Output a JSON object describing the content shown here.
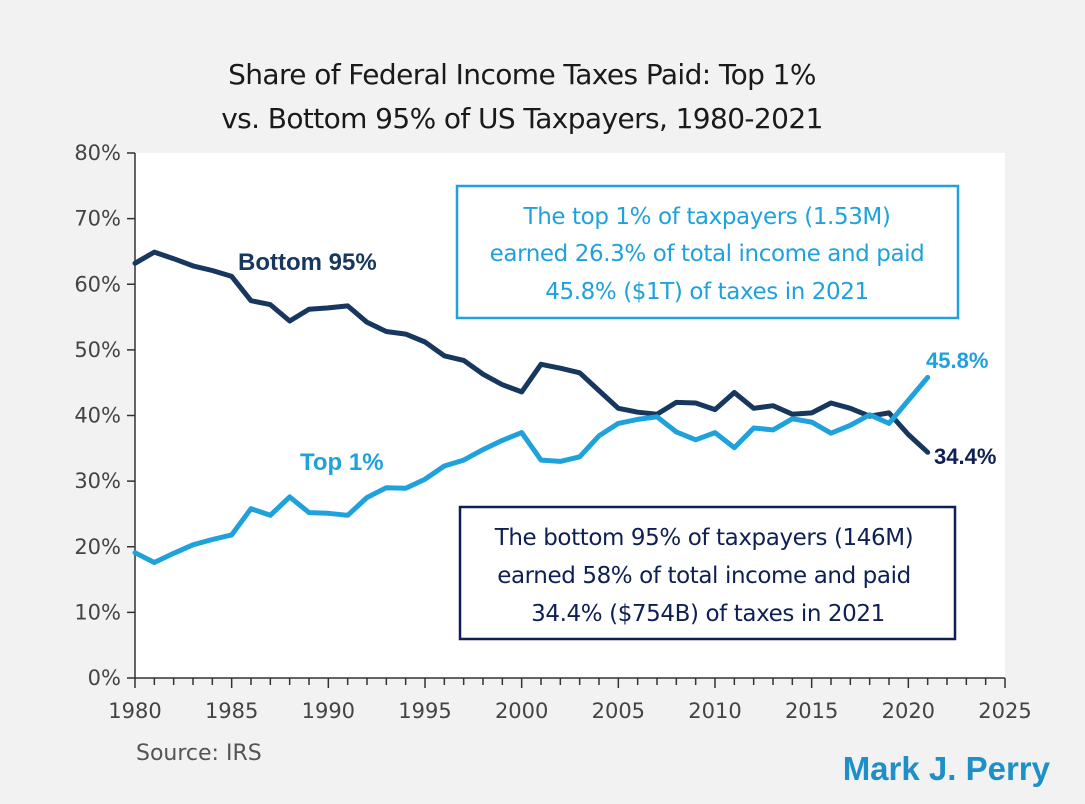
{
  "chart_data": {
    "type": "line",
    "title_lines": [
      "Share of Federal Income Taxes Paid: Top 1%",
      "vs. Bottom 95% of US Taxpayers, 1980-2021"
    ],
    "xlim": [
      1980,
      2025
    ],
    "ylim": [
      0,
      80
    ],
    "x_ticks": [
      "1980",
      "1985",
      "1990",
      "1995",
      "2000",
      "2005",
      "2010",
      "2015",
      "2020",
      "2025"
    ],
    "y_ticks": [
      "0%",
      "10%",
      "20%",
      "30%",
      "40%",
      "50%",
      "60%",
      "70%",
      "80%"
    ],
    "x": [
      1980,
      1981,
      1982,
      1983,
      1984,
      1985,
      1986,
      1987,
      1988,
      1989,
      1990,
      1991,
      1992,
      1993,
      1994,
      1995,
      1996,
      1997,
      1998,
      1999,
      2000,
      2001,
      2002,
      2003,
      2004,
      2005,
      2006,
      2007,
      2008,
      2009,
      2010,
      2011,
      2012,
      2013,
      2014,
      2015,
      2016,
      2017,
      2018,
      2019,
      2020,
      2021
    ],
    "series": [
      {
        "name": "Bottom 95%",
        "color": "#17375e",
        "values": [
          63.2,
          64.9,
          63.9,
          62.8,
          62.1,
          61.2,
          57.5,
          56.9,
          54.4,
          56.2,
          56.4,
          56.7,
          54.2,
          52.8,
          52.4,
          51.2,
          49.1,
          48.4,
          46.3,
          44.7,
          43.6,
          47.8,
          47.2,
          46.5,
          43.8,
          41.1,
          40.5,
          40.2,
          42.0,
          41.9,
          40.9,
          43.5,
          41.1,
          41.5,
          40.2,
          40.4,
          41.9,
          41.1,
          39.9,
          40.4,
          37.1,
          34.4
        ]
      },
      {
        "name": "Top 1%",
        "color": "#1fa2dc",
        "values": [
          19.1,
          17.6,
          19.0,
          20.3,
          21.1,
          21.8,
          25.8,
          24.8,
          27.6,
          25.2,
          25.1,
          24.8,
          27.5,
          29.0,
          28.9,
          30.3,
          32.3,
          33.2,
          34.8,
          36.2,
          37.4,
          33.2,
          33.0,
          33.7,
          36.9,
          38.8,
          39.4,
          39.8,
          37.5,
          36.3,
          37.4,
          35.1,
          38.1,
          37.8,
          39.5,
          39.0,
          37.3,
          38.5,
          40.1,
          38.8,
          42.3,
          45.8
        ]
      }
    ],
    "series_labels": {
      "bottom": "Bottom 95%",
      "top": "Top 1%"
    },
    "end_labels": {
      "top": "45.8%",
      "bottom": "34.4%"
    },
    "annotations": {
      "top_box": {
        "lines": [
          "The top 1% of taxpayers (1.53M)",
          "earned 26.3% of total income and paid",
          "45.8% ($1T) of taxes in 2021"
        ],
        "color": "#1fa2dc"
      },
      "bottom_box": {
        "lines": [
          "The bottom 95% of taxpayers (146M)",
          "earned 58% of total income and paid",
          "34.4% ($754B) of taxes in 2021"
        ],
        "color": "#0e1f54"
      }
    },
    "source": "Source: IRS",
    "author": "Mark J. Perry",
    "author_color": "#1f8fc8"
  }
}
